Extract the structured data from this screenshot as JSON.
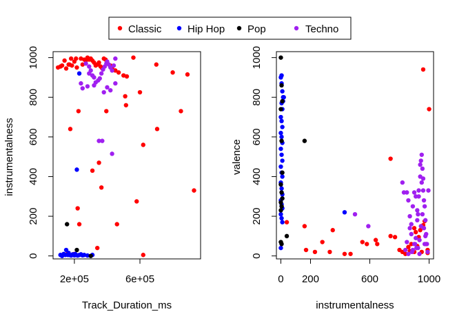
{
  "legend": {
    "placement": "top-center",
    "items": [
      {
        "label": "Classic",
        "color": "#ff0000"
      },
      {
        "label": "Hip Hop",
        "color": "#0000ff"
      },
      {
        "label": "Pop",
        "color": "#000000"
      },
      {
        "label": "Techno",
        "color": "#a020f0"
      }
    ]
  },
  "chart_data": [
    {
      "type": "scatter",
      "title": "",
      "xlabel": "Track_Duration_ms",
      "ylabel": "instrumentalness",
      "xlim": [
        70000,
        970000
      ],
      "ylim": [
        -15,
        1030
      ],
      "xticks": [
        200000,
        600000
      ],
      "xtick_labels": [
        "2e+05",
        "6e+05"
      ],
      "yticks": [
        0,
        200,
        400,
        600,
        800,
        1000
      ],
      "yticks_labels": [
        "0",
        "200",
        "400",
        "600",
        "800",
        "1000"
      ],
      "grid": false,
      "series": [
        {
          "name": "Classic",
          "color": "#ff0000",
          "points": [
            [
              100000,
              950
            ],
            [
              115000,
              955
            ],
            [
              125000,
              960
            ],
            [
              140000,
              985
            ],
            [
              150000,
              945
            ],
            [
              165000,
              965
            ],
            [
              170000,
              965
            ],
            [
              180000,
              995
            ],
            [
              185000,
              960
            ],
            [
              200000,
              980
            ],
            [
              210000,
              995
            ],
            [
              215000,
              950
            ],
            [
              240000,
              995
            ],
            [
              250000,
              965
            ],
            [
              260000,
              990
            ],
            [
              270000,
              985
            ],
            [
              280000,
              1000
            ],
            [
              290000,
              990
            ],
            [
              300000,
              995
            ],
            [
              310000,
              985
            ],
            [
              320000,
              975
            ],
            [
              330000,
              960
            ],
            [
              340000,
              965
            ],
            [
              350000,
              975
            ],
            [
              360000,
              955
            ],
            [
              370000,
              945
            ],
            [
              380000,
              995
            ],
            [
              390000,
              990
            ],
            [
              400000,
              975
            ],
            [
              420000,
              960
            ],
            [
              430000,
              945
            ],
            [
              450000,
              935
            ],
            [
              470000,
              925
            ],
            [
              500000,
              910
            ],
            [
              520000,
              905
            ],
            [
              560000,
              1000
            ],
            [
              600000,
              825
            ],
            [
              700000,
              965
            ],
            [
              800000,
              925
            ],
            [
              890000,
              915
            ],
            [
              510000,
              805
            ],
            [
              515000,
              760
            ],
            [
              395000,
              730
            ],
            [
              225000,
              730
            ],
            [
              175000,
              640
            ],
            [
              705000,
              640
            ],
            [
              620000,
              560
            ],
            [
              350000,
              470
            ],
            [
              310000,
              430
            ],
            [
              365000,
              345
            ],
            [
              580000,
              275
            ],
            [
              220000,
              240
            ],
            [
              230000,
              160
            ],
            [
              460000,
              160
            ],
            [
              340000,
              40
            ],
            [
              200000,
              10
            ],
            [
              160000,
              15
            ],
            [
              620000,
              5
            ],
            [
              930000,
              330
            ],
            [
              850000,
              730
            ]
          ]
        },
        {
          "name": "Hip Hop",
          "color": "#0000ff",
          "points": [
            [
              115000,
              5
            ],
            [
              125000,
              0
            ],
            [
              135000,
              10
            ],
            [
              145000,
              5
            ],
            [
              150000,
              30
            ],
            [
              160000,
              5
            ],
            [
              165000,
              15
            ],
            [
              170000,
              5
            ],
            [
              180000,
              2
            ],
            [
              190000,
              8
            ],
            [
              200000,
              3
            ],
            [
              205000,
              10
            ],
            [
              210000,
              5
            ],
            [
              220000,
              2
            ],
            [
              230000,
              5
            ],
            [
              240000,
              8
            ],
            [
              250000,
              3
            ],
            [
              260000,
              5
            ],
            [
              280000,
              2
            ],
            [
              310000,
              5
            ],
            [
              215000,
              435
            ],
            [
              230000,
              920
            ]
          ]
        },
        {
          "name": "Pop",
          "color": "#000000",
          "points": [
            [
              155000,
              160
            ],
            [
              215000,
              30
            ],
            [
              300000,
              0
            ]
          ]
        },
        {
          "name": "Techno",
          "color": "#a020f0",
          "points": [
            [
              270000,
              970
            ],
            [
              290000,
              955
            ],
            [
              300000,
              935
            ],
            [
              310000,
              910
            ],
            [
              320000,
              900
            ],
            [
              330000,
              875
            ],
            [
              345000,
              885
            ],
            [
              355000,
              895
            ],
            [
              365000,
              920
            ],
            [
              375000,
              940
            ],
            [
              385000,
              955
            ],
            [
              395000,
              970
            ],
            [
              400000,
              980
            ],
            [
              410000,
              965
            ],
            [
              420000,
              950
            ],
            [
              430000,
              935
            ],
            [
              440000,
              960
            ],
            [
              450000,
              995
            ],
            [
              400000,
              850
            ],
            [
              420000,
              835
            ],
            [
              380000,
              825
            ],
            [
              450000,
              870
            ],
            [
              320000,
              860
            ],
            [
              240000,
              870
            ],
            [
              250000,
              845
            ],
            [
              280000,
              855
            ],
            [
              350000,
              580
            ],
            [
              370000,
              580
            ],
            [
              430000,
              515
            ],
            [
              290000,
              920
            ]
          ]
        }
      ]
    },
    {
      "type": "scatter",
      "title": "",
      "xlabel": "instrumentalness",
      "ylabel": "valence",
      "xlim": [
        -30,
        1030
      ],
      "ylim": [
        -15,
        1030
      ],
      "xticks": [
        0,
        200,
        600,
        1000
      ],
      "xtick_labels": [
        "0",
        "200",
        "600",
        "1000"
      ],
      "yticks": [
        0,
        200,
        400,
        600,
        800,
        1000
      ],
      "yticks_labels": [
        "0",
        "200",
        "400",
        "600",
        "800",
        "1000"
      ],
      "grid": false,
      "series": [
        {
          "name": "Classic",
          "color": "#ff0000",
          "points": [
            [
              40,
              170
            ],
            [
              160,
              150
            ],
            [
              170,
              30
            ],
            [
              230,
              20
            ],
            [
              280,
              70
            ],
            [
              330,
              20
            ],
            [
              350,
              130
            ],
            [
              430,
              10
            ],
            [
              470,
              10
            ],
            [
              550,
              70
            ],
            [
              580,
              60
            ],
            [
              640,
              80
            ],
            [
              650,
              60
            ],
            [
              740,
              490
            ],
            [
              740,
              100
            ],
            [
              770,
              95
            ],
            [
              800,
              30
            ],
            [
              820,
              20
            ],
            [
              840,
              10
            ],
            [
              870,
              25
            ],
            [
              880,
              60
            ],
            [
              900,
              140
            ],
            [
              910,
              120
            ],
            [
              920,
              50
            ],
            [
              940,
              130
            ],
            [
              950,
              20
            ],
            [
              960,
              940
            ],
            [
              970,
              175
            ],
            [
              980,
              60
            ],
            [
              990,
              15
            ],
            [
              1000,
              740
            ],
            [
              930,
              95
            ],
            [
              860,
              45
            ],
            [
              960,
              155
            ],
            [
              990,
              30
            ],
            [
              900,
              20
            ]
          ]
        },
        {
          "name": "Hip Hop",
          "color": "#0000ff",
          "points": [
            [
              0,
              900
            ],
            [
              5,
              870
            ],
            [
              10,
              830
            ],
            [
              15,
              800
            ],
            [
              5,
              770
            ],
            [
              10,
              740
            ],
            [
              0,
              700
            ],
            [
              5,
              680
            ],
            [
              10,
              650
            ],
            [
              0,
              620
            ],
            [
              5,
              600
            ],
            [
              10,
              570
            ],
            [
              0,
              540
            ],
            [
              5,
              510
            ],
            [
              10,
              480
            ],
            [
              0,
              450
            ],
            [
              5,
              420
            ],
            [
              10,
              400
            ],
            [
              0,
              370
            ],
            [
              5,
              340
            ],
            [
              10,
              310
            ],
            [
              0,
              280
            ],
            [
              5,
              260
            ],
            [
              10,
              240
            ],
            [
              0,
              210
            ],
            [
              5,
              190
            ],
            [
              10,
              170
            ],
            [
              20,
              800
            ],
            [
              15,
              780
            ],
            [
              5,
              910
            ],
            [
              0,
              40
            ],
            [
              430,
              220
            ]
          ]
        },
        {
          "name": "Pop",
          "color": "#000000",
          "points": [
            [
              0,
              1000
            ],
            [
              5,
              860
            ],
            [
              10,
              780
            ],
            [
              0,
              740
            ],
            [
              5,
              580
            ],
            [
              10,
              420
            ],
            [
              0,
              360
            ],
            [
              5,
              320
            ],
            [
              10,
              290
            ],
            [
              0,
              270
            ],
            [
              5,
              250
            ],
            [
              0,
              230
            ],
            [
              160,
              580
            ],
            [
              40,
              100
            ],
            [
              0,
              70
            ],
            [
              5,
              60
            ]
          ]
        },
        {
          "name": "Techno",
          "color": "#a020f0",
          "points": [
            [
              500,
              210
            ],
            [
              590,
              150
            ],
            [
              820,
              370
            ],
            [
              830,
              320
            ],
            [
              840,
              30
            ],
            [
              850,
              70
            ],
            [
              860,
              10
            ],
            [
              870,
              140
            ],
            [
              880,
              160
            ],
            [
              885,
              20
            ],
            [
              890,
              250
            ],
            [
              900,
              320
            ],
            [
              905,
              60
            ],
            [
              910,
              300
            ],
            [
              915,
              40
            ],
            [
              920,
              230
            ],
            [
              925,
              210
            ],
            [
              930,
              330
            ],
            [
              935,
              10
            ],
            [
              940,
              460
            ],
            [
              945,
              480
            ],
            [
              950,
              510
            ],
            [
              955,
              440
            ],
            [
              960,
              330
            ],
            [
              965,
              280
            ],
            [
              970,
              250
            ],
            [
              975,
              180
            ],
            [
              980,
              110
            ],
            [
              985,
              60
            ],
            [
              990,
              20
            ],
            [
              995,
              330
            ],
            [
              960,
              390
            ],
            [
              950,
              370
            ],
            [
              940,
              400
            ],
            [
              930,
              300
            ],
            [
              920,
              180
            ],
            [
              910,
              90
            ],
            [
              900,
              60
            ],
            [
              890,
              30
            ],
            [
              880,
              110
            ],
            [
              870,
              200
            ],
            [
              860,
              280
            ],
            [
              850,
              320
            ],
            [
              970,
              60
            ],
            [
              975,
              100
            ],
            [
              965,
              140
            ],
            [
              955,
              210
            ],
            [
              945,
              150
            ],
            [
              935,
              80
            ],
            [
              925,
              40
            ]
          ]
        }
      ]
    }
  ]
}
